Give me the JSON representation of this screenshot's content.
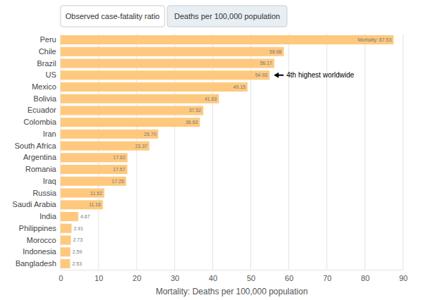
{
  "chart_data": {
    "type": "bar",
    "orientation": "horizontal",
    "tabs": [
      "Observed case-fatality ratio",
      "Deaths per 100,000 population"
    ],
    "x_label": "Mortality: Deaths per 100,000 population",
    "categories": [
      "Peru",
      "Chile",
      "Brazil",
      "US",
      "Mexico",
      "Bolivia",
      "Ecuador",
      "Colombia",
      "Iran",
      "South Africa",
      "Argentina",
      "Romania",
      "Iraq",
      "Russia",
      "Saudi Arabia",
      "India",
      "Philippines",
      "Morocco",
      "Indonesia",
      "Bangladesh"
    ],
    "values": [
      87.53,
      58.68,
      56.17,
      54.93,
      49.15,
      41.63,
      37.52,
      36.63,
      25.7,
      23.37,
      17.62,
      17.57,
      17.25,
      11.52,
      11.16,
      4.67,
      2.91,
      2.73,
      2.59,
      2.53
    ],
    "value_labels": [
      "Mortality: 87.53",
      "58.68",
      "56.17",
      "54.93",
      "49.15",
      "41.63",
      "37.52",
      "36.63",
      "25.70",
      "23.37",
      "17.62",
      "17.57",
      "17.25",
      "11.52",
      "11.16",
      "4.67",
      "2.91",
      "2.73",
      "2.59",
      "2.53"
    ],
    "color": "#fec97f",
    "xlim": [
      0,
      90
    ],
    "xticks": [
      0,
      10,
      20,
      30,
      40,
      50,
      60,
      70,
      80,
      90
    ],
    "grid": true,
    "data_labels": true,
    "annotations": [
      {
        "text": "4th highest worldwide",
        "category": "US"
      }
    ]
  }
}
